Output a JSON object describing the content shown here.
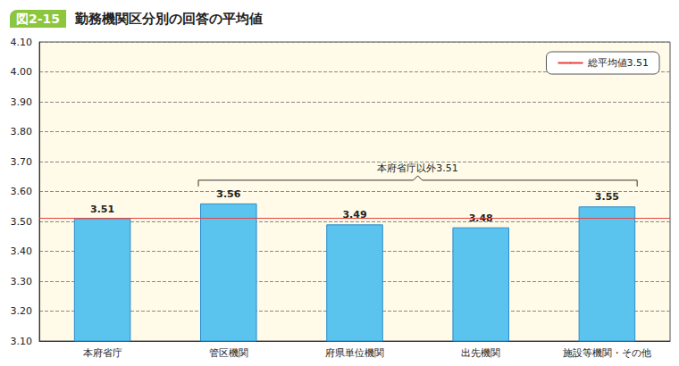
{
  "chart_data": {
    "type": "bar",
    "title": "図2-15　勤務機関区分別の回答の平均値",
    "categories": [
      "本府省庁",
      "管区機関",
      "府県単位機関",
      "出先機関",
      "施設等機関・その他"
    ],
    "values": [
      3.51,
      3.56,
      3.49,
      3.48,
      3.55
    ],
    "color": "#5bc4ee",
    "ylim": [
      3.1,
      4.1
    ],
    "yticks": [
      {
        "value": 3.1,
        "label": "3.10"
      },
      {
        "value": 3.2,
        "label": "3.20"
      },
      {
        "value": 3.3,
        "label": "3.30"
      },
      {
        "value": 3.4,
        "label": "3.40"
      },
      {
        "value": 3.5,
        "label": "3.50"
      },
      {
        "value": 3.6,
        "label": "3.60"
      },
      {
        "value": 3.7,
        "label": "3.70"
      },
      {
        "value": 3.8,
        "label": "3.80"
      },
      {
        "value": 3.9,
        "label": "3.90"
      },
      {
        "value": 4.0,
        "label": "4.00"
      },
      {
        "value": 4.1,
        "label": "4.10"
      }
    ],
    "grid": true,
    "data_labels": true,
    "legend": "upper right",
    "reference_line": {
      "name": "総平均値3.51",
      "value": 3.51,
      "color": "#e8413c"
    },
    "annotations": [
      {
        "text": "本府省庁以外3.51",
        "start": "管区機関",
        "end": "施設等機関・その他"
      }
    ]
  }
}
